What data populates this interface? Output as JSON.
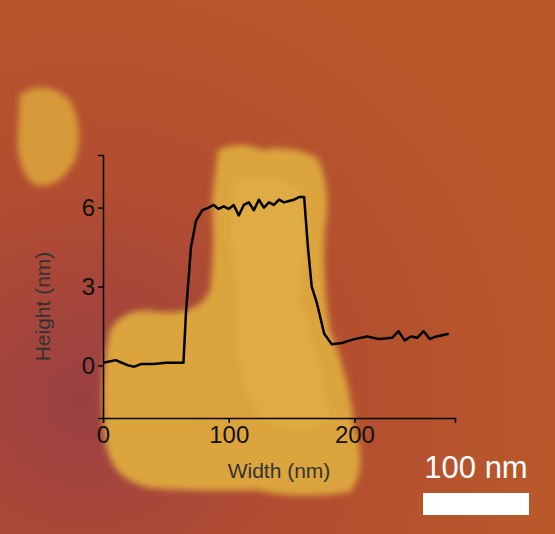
{
  "chart_data": {
    "type": "line",
    "x_label": "Width (nm)",
    "y_label": "Height (nm)",
    "annotations": [
      "100 nm"
    ],
    "x": [
      0,
      5,
      10,
      15,
      20,
      25,
      30,
      40,
      50,
      60,
      64,
      66,
      70,
      74,
      79,
      84,
      88,
      92,
      96,
      100,
      104,
      108,
      112,
      116,
      120,
      124,
      128,
      132,
      136,
      140,
      144,
      148,
      152,
      156,
      160,
      163,
      166,
      170,
      176,
      182,
      190,
      200,
      210,
      220,
      230,
      235,
      240,
      245,
      250,
      255,
      260,
      265,
      270,
      275
    ],
    "values": [
      0.1,
      0.15,
      0.2,
      0.1,
      0,
      -0.05,
      0.05,
      0.05,
      0.1,
      0.1,
      0.1,
      2.0,
      4.5,
      5.5,
      5.9,
      6.0,
      6.1,
      5.95,
      6.05,
      5.95,
      6.1,
      5.7,
      6.1,
      6.2,
      5.9,
      6.3,
      6.0,
      6.2,
      6.1,
      6.3,
      6.2,
      6.25,
      6.3,
      6.4,
      6.4,
      4.5,
      3.0,
      2.4,
      1.2,
      0.8,
      0.85,
      1.0,
      1.1,
      1.0,
      1.05,
      1.3,
      0.95,
      1.1,
      1.05,
      1.3,
      1.0,
      1.1,
      1.15,
      1.2
    ],
    "color": "#000000",
    "xlim": [
      0,
      280
    ],
    "ylim": [
      -2,
      8
    ],
    "xticks": [
      0,
      100,
      200
    ],
    "yticks": [
      0,
      3,
      6
    ],
    "grid": false
  }
}
